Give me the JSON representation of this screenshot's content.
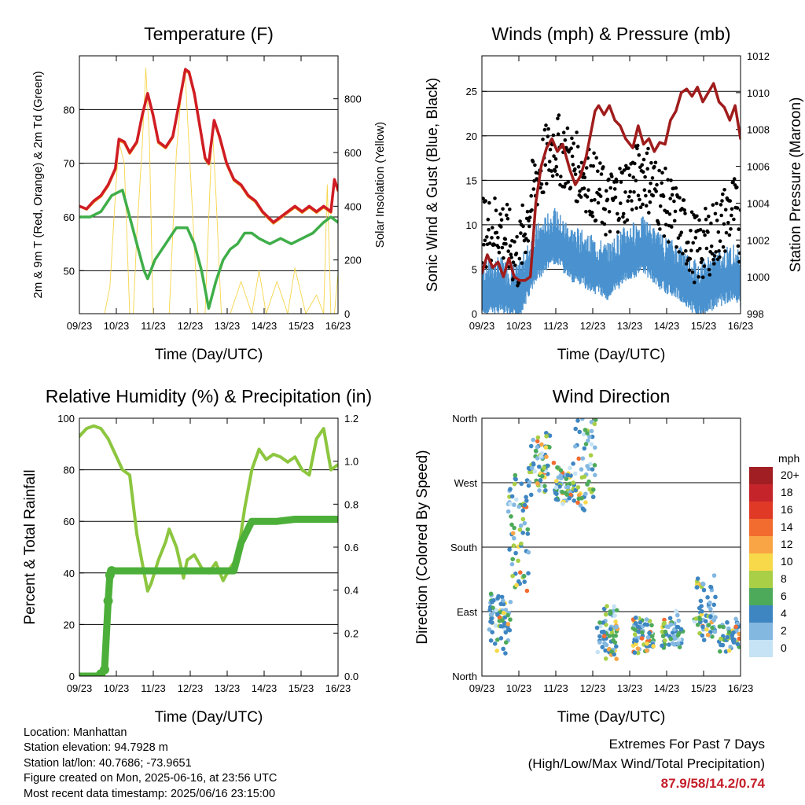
{
  "chart_data": [
    {
      "type": "line",
      "title": "Temperature (F)",
      "xlabel": "Time (Day/UTC)",
      "ylabel": "2m & 9m T (Red, Orange) & 2m Td (Green)",
      "ylabel_right": "Solar Insolation (Yellow)",
      "x_ticks": [
        "09/23",
        "10/23",
        "11/23",
        "12/23",
        "13/23",
        "14/23",
        "15/23",
        "16/23"
      ],
      "y_ticks": [
        "50",
        "60",
        "70",
        "80"
      ],
      "y_ticks_right": [
        "0",
        "200",
        "400",
        "600",
        "800"
      ],
      "ylim": [
        42,
        90
      ],
      "ylim_right": [
        0,
        960
      ],
      "grid": true,
      "series": [
        {
          "color": "#d01c24",
          "x": [
            0,
            0.2,
            0.4,
            0.6,
            0.8,
            1.0,
            1.1,
            1.25,
            1.4,
            1.6,
            1.75,
            1.9,
            2.05,
            2.2,
            2.4,
            2.6,
            2.8,
            2.95,
            3.05,
            3.2,
            3.35,
            3.5,
            3.6,
            3.75,
            3.9,
            4.1,
            4.3,
            4.5,
            4.7,
            4.9,
            5.1,
            5.25,
            5.4,
            5.6,
            5.8,
            6.0,
            6.2,
            6.4,
            6.6,
            6.8,
            7.0,
            7.1,
            7.2
          ],
          "values": [
            62,
            61.5,
            63,
            64,
            66,
            69,
            74.5,
            74,
            72,
            74,
            79,
            83,
            79,
            74,
            73,
            75,
            82,
            87.5,
            87,
            83,
            77,
            71,
            70,
            78,
            75,
            70,
            67,
            66,
            64,
            63,
            61,
            60,
            59,
            60,
            61,
            62,
            61,
            62,
            61,
            62,
            61,
            67,
            65
          ]
        },
        {
          "color": "#f09a1a",
          "x": [
            0,
            0.2,
            0.4,
            0.6,
            0.8,
            1.0,
            1.1,
            1.25,
            1.4,
            1.6,
            1.75,
            1.9,
            2.05,
            2.2,
            2.4,
            2.6,
            2.8,
            2.95,
            3.05,
            3.2,
            3.35,
            3.5,
            3.6,
            3.75,
            3.9,
            4.1,
            4.3,
            4.5,
            4.7,
            4.9,
            5.1,
            5.25,
            5.4,
            5.6,
            5.8,
            6.0,
            6.2,
            6.4,
            6.6,
            6.8,
            7.0,
            7.1,
            7.2
          ],
          "values": [
            62,
            61.4,
            62.8,
            63.8,
            65.8,
            68.8,
            74.2,
            73.8,
            71.8,
            73.8,
            78.8,
            82.8,
            78.8,
            73.8,
            72.8,
            74.8,
            81.8,
            87.2,
            86.8,
            82.8,
            76.8,
            70.8,
            69.8,
            77.8,
            74.8,
            69.8,
            66.8,
            65.8,
            63.8,
            62.8,
            60.8,
            59.8,
            58.8,
            59.8,
            60.8,
            61.8,
            60.8,
            61.8,
            60.8,
            61.8,
            60.8,
            66.8,
            64.8
          ]
        },
        {
          "color": "#3fae49",
          "x": [
            0,
            0.3,
            0.6,
            0.9,
            1.2,
            1.4,
            1.6,
            1.8,
            1.9,
            2.1,
            2.4,
            2.7,
            3.0,
            3.2,
            3.4,
            3.6,
            3.8,
            4.0,
            4.2,
            4.4,
            4.6,
            4.8,
            5.0,
            5.3,
            5.6,
            5.9,
            6.2,
            6.5,
            6.8,
            7.0,
            7.2
          ],
          "values": [
            60,
            60,
            61,
            64,
            65,
            60,
            55,
            50,
            48.5,
            52,
            55,
            58,
            58,
            55,
            50,
            43,
            48,
            52,
            54,
            55,
            57,
            57,
            56,
            55,
            56,
            55,
            56,
            57,
            59,
            60,
            59
          ]
        },
        {
          "color": "#f6d54a",
          "axis": "right",
          "x": [
            0,
            0.3,
            0.5,
            0.7,
            0.85,
            1.0,
            1.1,
            1.25,
            1.4,
            1.5,
            1.6,
            1.75,
            1.85,
            1.95,
            2.05,
            2.15,
            2.3,
            2.5,
            2.7,
            2.8,
            2.9,
            2.95,
            3.1,
            3.3,
            3.5,
            3.7,
            3.8,
            3.95,
            4.05,
            4.2,
            4.5,
            4.8,
            5.0,
            5.2,
            5.5,
            5.8,
            6.0,
            6.3,
            6.6,
            6.8,
            6.9,
            7.0,
            7.1,
            7.2
          ],
          "values": [
            0,
            0,
            0,
            0,
            100,
            440,
            640,
            560,
            0,
            0,
            300,
            630,
            915,
            640,
            0,
            0,
            0,
            0,
            600,
            760,
            900,
            880,
            500,
            0,
            0,
            700,
            450,
            0,
            0,
            0,
            120,
            0,
            160,
            0,
            120,
            0,
            170,
            0,
            70,
            0,
            480,
            0,
            0,
            150
          ]
        }
      ]
    },
    {
      "type": "scatter",
      "title": "Winds (mph) & Pressure (mb)",
      "xlabel": "Time (Day/UTC)",
      "ylabel": "Sonic Wind & Gust (Blue, Black)",
      "ylabel_right": "Station Pressure (Maroon)",
      "x_ticks": [
        "09/23",
        "10/23",
        "11/23",
        "12/23",
        "13/23",
        "14/23",
        "15/23",
        "16/23"
      ],
      "y_ticks": [
        "0",
        "5",
        "10",
        "15",
        "20",
        "25"
      ],
      "y_ticks_right": [
        "998",
        "1000",
        "1002",
        "1004",
        "1006",
        "1008",
        "1010",
        "1012"
      ],
      "ylim": [
        0,
        29
      ],
      "ylim_right": [
        998,
        1012
      ],
      "grid": true,
      "series": [
        {
          "color": "#4a92cf",
          "x": [
            0,
            0.5,
            1.0,
            1.5,
            2.0,
            2.5,
            3.0,
            3.5,
            4.0,
            4.5,
            5.0,
            5.5,
            6.0,
            6.5,
            7.0,
            7.2
          ],
          "values": [
            3,
            3.5,
            2.5,
            7,
            9,
            7,
            6,
            5,
            7,
            8,
            6,
            5,
            3,
            4,
            5,
            4
          ]
        },
        {
          "color": "#000000",
          "x": [
            0,
            0.5,
            1.0,
            1.5,
            2.0,
            2.5,
            3.0,
            3.5,
            4.0,
            4.5,
            5.0,
            5.5,
            6.0,
            6.5,
            7.0,
            7.2
          ],
          "values": [
            9,
            10,
            6,
            15,
            19,
            17,
            15,
            12,
            14,
            16,
            13,
            10,
            7,
            9,
            12,
            9
          ]
        },
        {
          "color": "#a01c1c",
          "axis": "right",
          "x": [
            0,
            0.15,
            0.3,
            0.45,
            0.6,
            0.75,
            0.9,
            1.05,
            1.2,
            1.35,
            1.5,
            1.65,
            1.8,
            1.95,
            2.1,
            2.25,
            2.45,
            2.6,
            2.75,
            2.9,
            3.05,
            3.15,
            3.25,
            3.4,
            3.55,
            3.7,
            3.85,
            4.0,
            4.2,
            4.35,
            4.5,
            4.65,
            4.8,
            4.95,
            5.1,
            5.25,
            5.4,
            5.55,
            5.7,
            5.85,
            6.0,
            6.15,
            6.3,
            6.45,
            6.6,
            6.75,
            6.9,
            7.05,
            7.2
          ],
          "values": [
            1000.2,
            1001.2,
            1000.5,
            1000.8,
            1000.0,
            1001.0,
            1000.0,
            999.8,
            999.8,
            1000.0,
            1004.0,
            1006.0,
            1007.0,
            1007.5,
            1006.8,
            1007.2,
            1005.8,
            1005.0,
            1005.5,
            1006.5,
            1008.0,
            1009.0,
            1009.3,
            1008.8,
            1009.3,
            1008.5,
            1008.2,
            1007.5,
            1007.0,
            1008.2,
            1007.2,
            1007.5,
            1006.8,
            1007.3,
            1007.2,
            1008.5,
            1009.0,
            1010.0,
            1010.2,
            1009.8,
            1010.3,
            1009.5,
            1010.0,
            1010.5,
            1009.5,
            1009.2,
            1008.5,
            1009.3,
            1007.5
          ]
        }
      ]
    },
    {
      "type": "line",
      "title": "Relative Humidity (%) & Precipitation (in)",
      "xlabel": "Time (Day/UTC)",
      "ylabel": "Percent & Total Rainfall",
      "x_ticks": [
        "09/23",
        "10/23",
        "11/23",
        "12/23",
        "13/23",
        "14/23",
        "15/23",
        "16/23"
      ],
      "y_ticks": [
        "0",
        "20",
        "40",
        "60",
        "80",
        "100"
      ],
      "y_ticks_right": [
        "0.0",
        "0.2",
        "0.4",
        "0.6",
        "0.8",
        "1.0",
        "1.2"
      ],
      "ylim": [
        0,
        100
      ],
      "ylim_right": [
        0,
        1.2
      ],
      "grid": true,
      "series": [
        {
          "color": "#8cc63f",
          "x": [
            0,
            0.2,
            0.4,
            0.6,
            0.8,
            1.0,
            1.2,
            1.4,
            1.6,
            1.8,
            1.9,
            2.0,
            2.2,
            2.4,
            2.5,
            2.7,
            2.9,
            3.0,
            3.2,
            3.4,
            3.6,
            3.8,
            4.0,
            4.2,
            4.4,
            4.6,
            4.8,
            5.0,
            5.2,
            5.4,
            5.6,
            5.8,
            6.0,
            6.2,
            6.4,
            6.6,
            6.8,
            7.0,
            7.2
          ],
          "values": [
            93,
            96,
            97,
            96,
            92,
            86,
            80,
            78,
            55,
            40,
            33,
            36,
            45,
            52,
            57,
            50,
            38,
            45,
            47,
            42,
            40,
            44,
            37,
            42,
            46,
            65,
            80,
            88,
            84,
            86,
            85,
            83,
            85,
            80,
            78,
            92,
            96,
            80,
            82
          ]
        },
        {
          "color": "#4caf39",
          "axis": "right",
          "x": [
            0,
            0.3,
            0.5,
            0.6,
            0.7,
            0.8,
            0.85,
            0.9,
            1.0,
            1.5,
            2.0,
            2.5,
            3.0,
            3.5,
            4.0,
            4.3,
            4.5,
            4.8,
            5.0,
            5.5,
            6.0,
            6.5,
            7.0,
            7.2
          ],
          "values": [
            0,
            0,
            0,
            0.01,
            0.03,
            0.35,
            0.47,
            0.49,
            0.49,
            0.49,
            0.49,
            0.49,
            0.49,
            0.49,
            0.49,
            0.49,
            0.62,
            0.72,
            0.72,
            0.72,
            0.73,
            0.73,
            0.73,
            0.73
          ]
        }
      ]
    },
    {
      "type": "scatter",
      "title": "Wind Direction",
      "xlabel": "Time (Day/UTC)",
      "ylabel": "Direction (Colored By Speed)",
      "x_ticks": [
        "09/23",
        "10/23",
        "11/23",
        "12/23",
        "13/23",
        "14/23",
        "15/23",
        "16/23"
      ],
      "y_ticks": [
        "North",
        "East",
        "South",
        "West",
        "North"
      ],
      "ylim": [
        0,
        360
      ],
      "grid": true,
      "clusters": [
        {
          "x": 0.5,
          "values": [
            100,
            90,
            80,
            70,
            40,
            60,
            110,
            85,
            75,
            95
          ]
        },
        {
          "x": 1.0,
          "values": [
            130,
            150,
            170,
            190,
            210,
            230,
            250,
            270,
            240
          ]
        },
        {
          "x": 1.6,
          "values": [
            285,
            300,
            310,
            320,
            330,
            290,
            270,
            260,
            280,
            300
          ]
        },
        {
          "x": 2.3,
          "values": [
            280,
            270,
            260,
            250,
            275,
            290,
            265,
            255,
            245
          ]
        },
        {
          "x": 2.9,
          "values": [
            300,
            320,
            340,
            350,
            280,
            260,
            250,
            240
          ]
        },
        {
          "x": 3.5,
          "values": [
            60,
            50,
            70,
            40,
            30,
            80,
            90,
            55,
            65
          ]
        },
        {
          "x": 4.5,
          "values": [
            45,
            50,
            60,
            70,
            40,
            55,
            65,
            75,
            50
          ]
        },
        {
          "x": 5.3,
          "values": [
            50,
            60,
            70,
            65,
            80,
            55,
            45,
            60
          ]
        },
        {
          "x": 6.2,
          "values": [
            60,
            70,
            80,
            90,
            100,
            120,
            130,
            65,
            75
          ]
        },
        {
          "x": 6.9,
          "values": [
            50,
            60,
            55,
            65,
            70,
            45,
            58
          ]
        }
      ],
      "colorbar": {
        "unit": "mph",
        "labels": [
          "20+",
          "18",
          "16",
          "14",
          "12",
          "10",
          "8",
          "6",
          "4",
          "2",
          "0"
        ],
        "colors": [
          "#a11e22",
          "#c5252a",
          "#e03a27",
          "#f26b2f",
          "#f9a545",
          "#f8d94a",
          "#a8cf45",
          "#4daa5a",
          "#3e86c2",
          "#83b8e1",
          "#c6e3f6"
        ]
      }
    }
  ],
  "info": {
    "location": "Location: Manhattan",
    "elevation": "Station elevation: 94.7928 m",
    "latlon": "Station lat/lon: 40.7686; -73.9651",
    "created": "Figure created on Mon, 2025-06-16, at 23:56 UTC",
    "recent": "Most recent data timestamp: 2025/06/16 23:15:00"
  },
  "extremes": {
    "line1": "Extremes For Past 7 Days",
    "line2": "(High/Low/Max Wind/Total Precipitation)",
    "values": "87.9/58/14.2/0.74"
  }
}
